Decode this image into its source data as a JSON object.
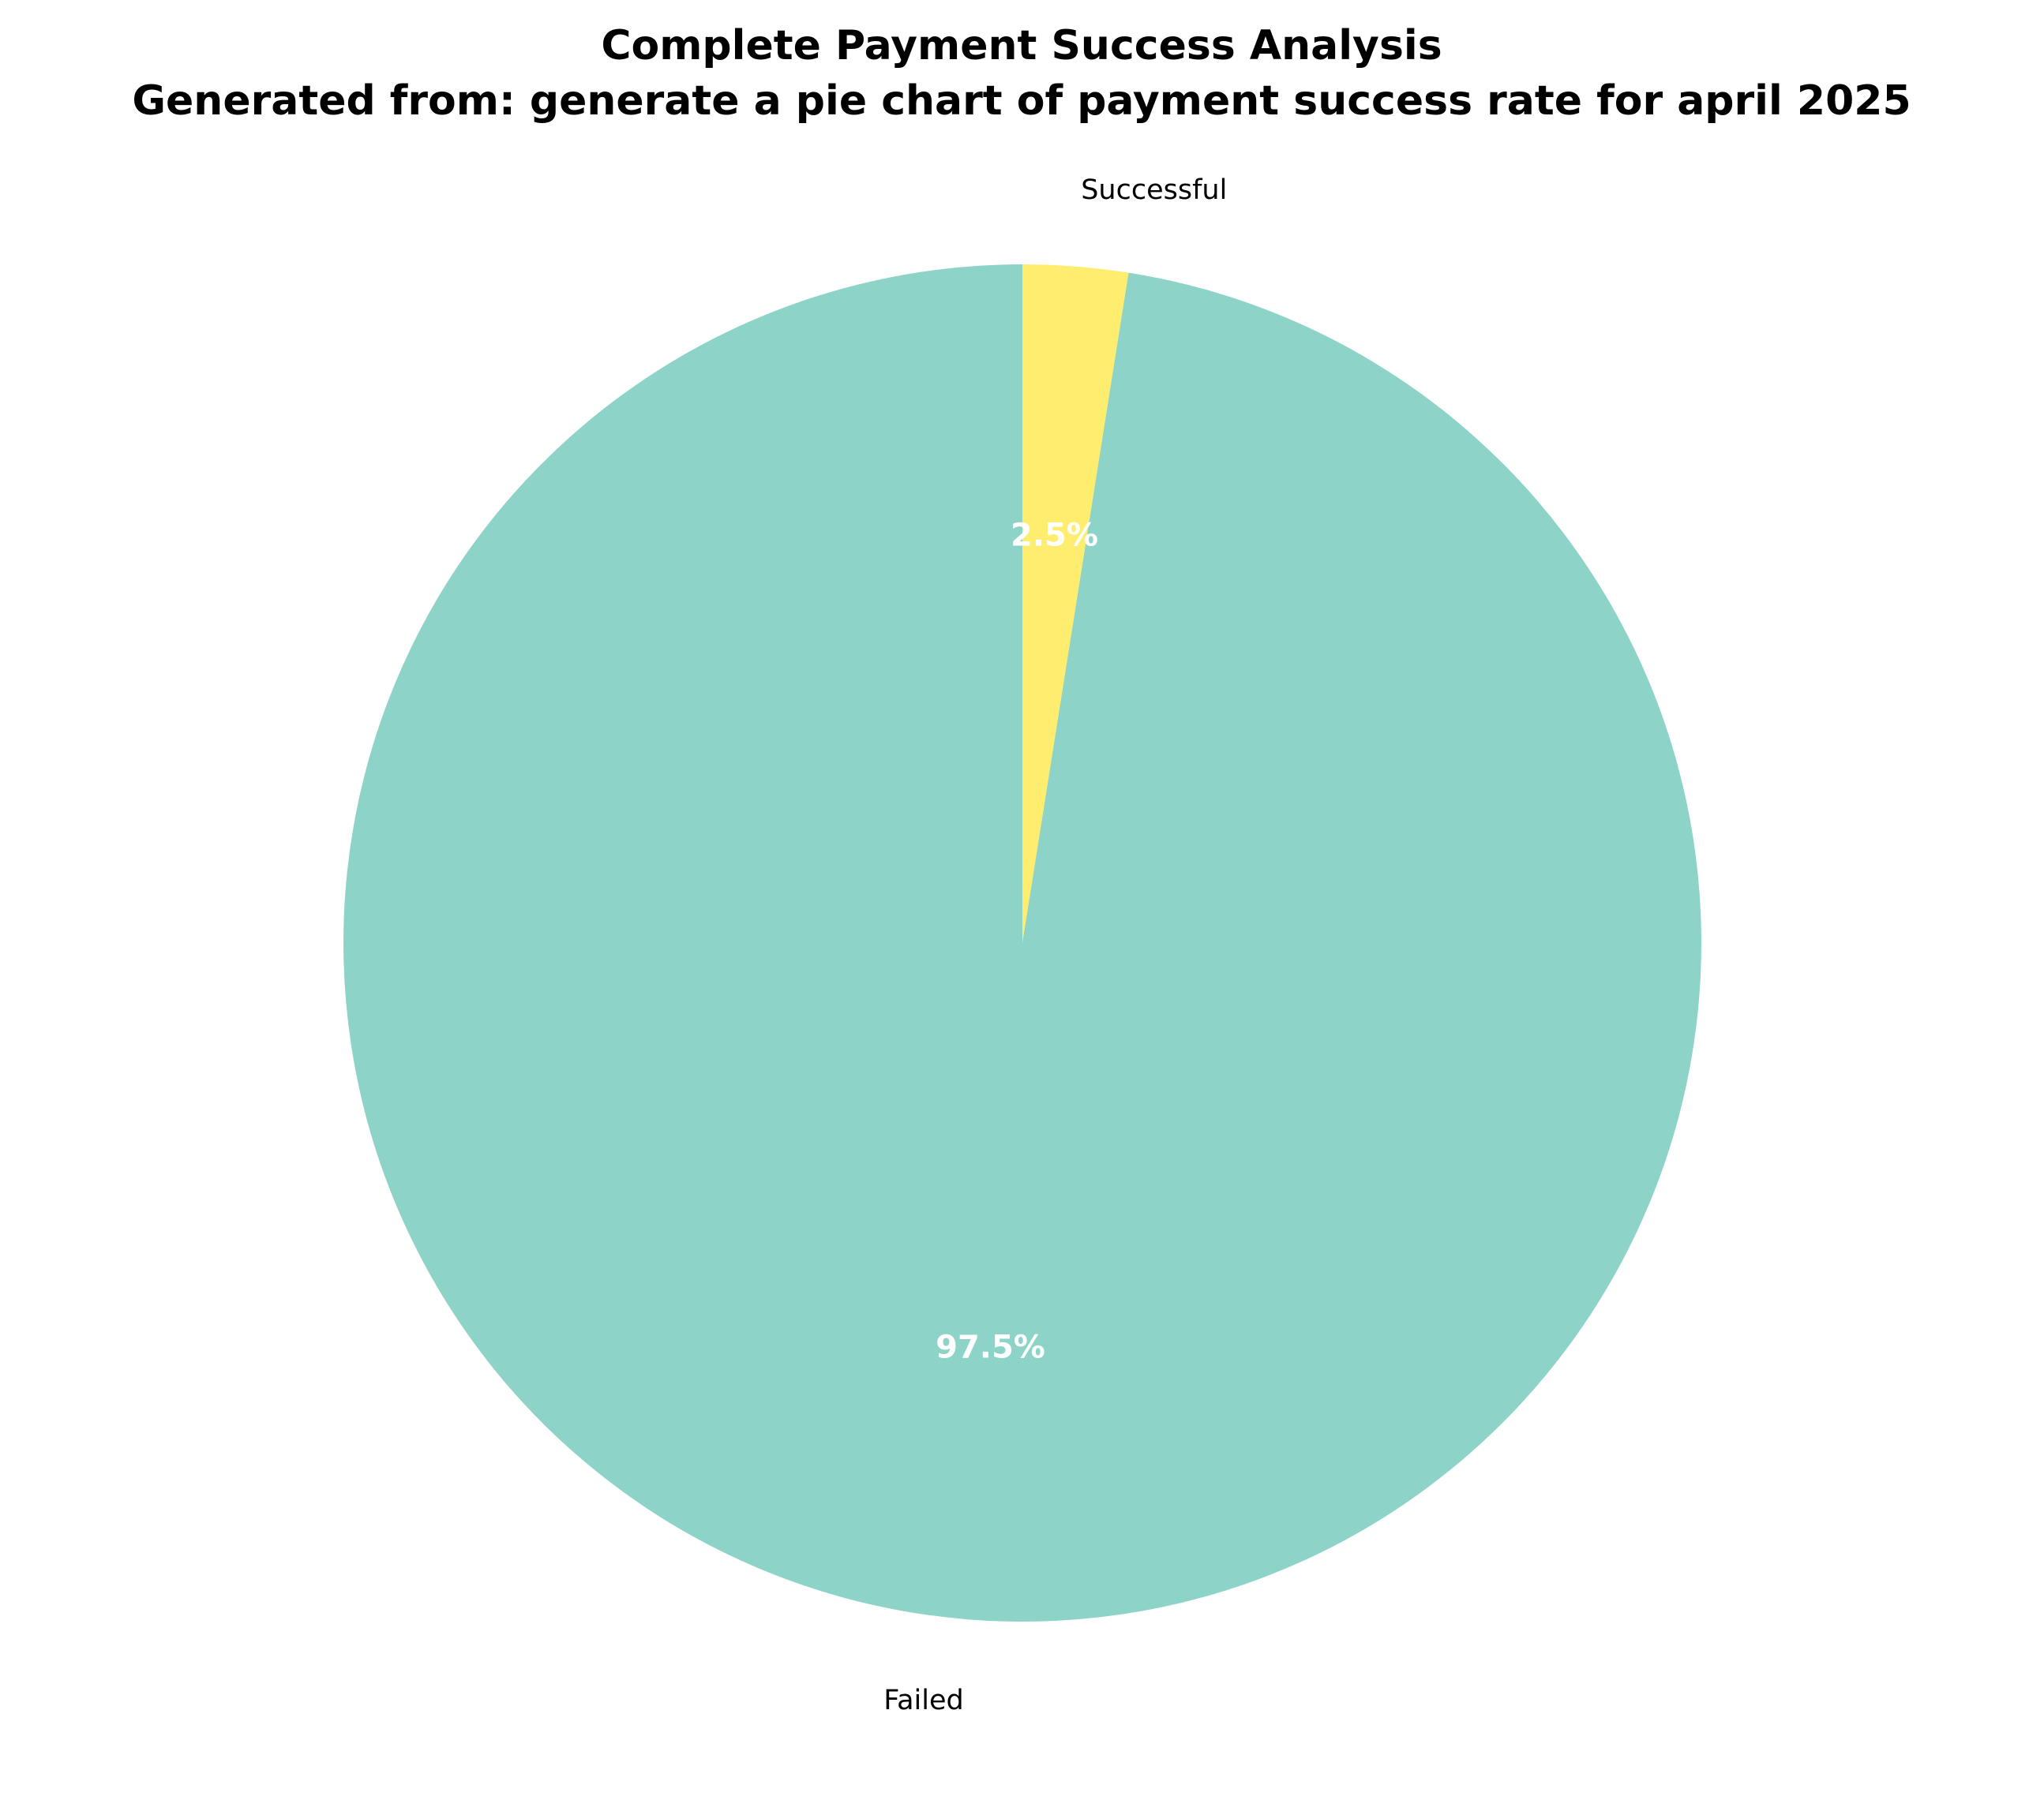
{
  "chart_data": {
    "type": "pie",
    "title": "Complete Payment Success Analysis",
    "subtitle": "Generated from: generate a pie chart of payment success rate for april 2025",
    "categories": [
      "Successful",
      "Failed"
    ],
    "values": [
      2.5,
      97.5
    ],
    "value_labels": [
      "2.5%",
      "97.5%"
    ],
    "colors": [
      "#ffed6f",
      "#8dd3c7"
    ],
    "pct_label_color": "#ffffff",
    "start_angle_deg": 90,
    "direction": "clockwise",
    "legend": "none"
  }
}
